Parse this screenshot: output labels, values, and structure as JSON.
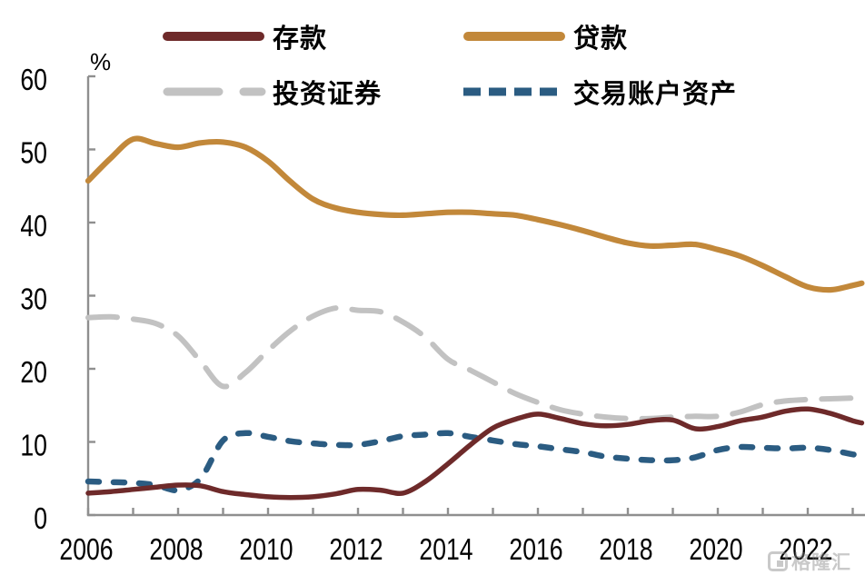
{
  "figure": {
    "unit_label": "%",
    "watermark": "格隆汇"
  },
  "chart_data": {
    "type": "line",
    "title": "",
    "ylabel": "%",
    "xlabel": "",
    "grid": false,
    "legend_position": "top",
    "axis_color": "#8f8f8f",
    "tick_label_color": "#000000",
    "ylim": [
      0,
      60
    ],
    "yticks": [
      0,
      10,
      20,
      30,
      40,
      50,
      60
    ],
    "xticks": {
      "start": 2006,
      "end": 2023,
      "step": 1
    },
    "xtick_labels": [
      "2006",
      "2008",
      "2010",
      "2012",
      "2014",
      "2016",
      "2018",
      "2020",
      "2022"
    ],
    "x_years": [
      2006,
      2006.5,
      2007,
      2007.5,
      2008,
      2008.5,
      2009,
      2009.5,
      2010,
      2010.5,
      2011,
      2011.5,
      2012,
      2012.5,
      2013,
      2013.5,
      2014,
      2014.5,
      2015,
      2015.5,
      2016,
      2016.5,
      2017,
      2017.5,
      2018,
      2018.5,
      2019,
      2019.5,
      2020,
      2020.5,
      2021,
      2021.5,
      2022,
      2022.5,
      2023,
      2023.2
    ],
    "series": [
      {
        "name": "存款",
        "color": "#6E2A2A",
        "line_style": "solid",
        "values": [
          3.0,
          3.2,
          3.5,
          3.8,
          4.1,
          4.0,
          3.2,
          2.8,
          2.5,
          2.4,
          2.5,
          2.9,
          3.5,
          3.4,
          3.0,
          4.6,
          7.0,
          9.6,
          11.9,
          13.1,
          13.8,
          13.2,
          12.5,
          12.2,
          12.4,
          12.9,
          13.0,
          11.8,
          12.1,
          12.9,
          13.4,
          14.2,
          14.5,
          13.9,
          12.9,
          12.6
        ]
      },
      {
        "name": "贷款",
        "color": "#C2883A",
        "line_style": "solid",
        "values": [
          45.7,
          48.8,
          51.4,
          50.8,
          50.3,
          50.9,
          51.0,
          50.3,
          48.4,
          45.6,
          43.2,
          42.0,
          41.4,
          41.1,
          41.0,
          41.2,
          41.4,
          41.4,
          41.2,
          41.0,
          40.4,
          39.7,
          38.9,
          38.0,
          37.2,
          36.8,
          36.9,
          37.0,
          36.3,
          35.4,
          34.1,
          32.6,
          31.2,
          30.8,
          31.4,
          31.7
        ]
      },
      {
        "name": "投资证券",
        "color": "#C2C2C2",
        "line_style": "long-dash",
        "values": [
          27.0,
          27.1,
          26.8,
          26.2,
          24.5,
          21.0,
          17.6,
          19.5,
          22.5,
          25.2,
          27.2,
          28.3,
          28.0,
          27.8,
          26.4,
          24.3,
          21.3,
          19.8,
          18.2,
          16.6,
          15.4,
          14.4,
          13.8,
          13.4,
          13.2,
          13.2,
          13.4,
          13.5,
          13.5,
          14.1,
          15.1,
          15.6,
          15.8,
          15.9,
          16.0,
          16.1
        ]
      },
      {
        "name": "交易账户资产",
        "color": "#2B5C82",
        "line_style": "short-dash",
        "values": [
          4.6,
          4.5,
          4.4,
          4.1,
          3.4,
          5.0,
          10.2,
          11.2,
          10.7,
          10.1,
          9.8,
          9.6,
          9.6,
          10.1,
          10.8,
          11.0,
          11.2,
          10.7,
          10.2,
          9.7,
          9.4,
          9.0,
          8.6,
          8.0,
          7.7,
          7.5,
          7.5,
          7.9,
          8.9,
          9.3,
          9.2,
          9.1,
          9.2,
          8.9,
          8.3,
          8.2
        ]
      }
    ]
  }
}
